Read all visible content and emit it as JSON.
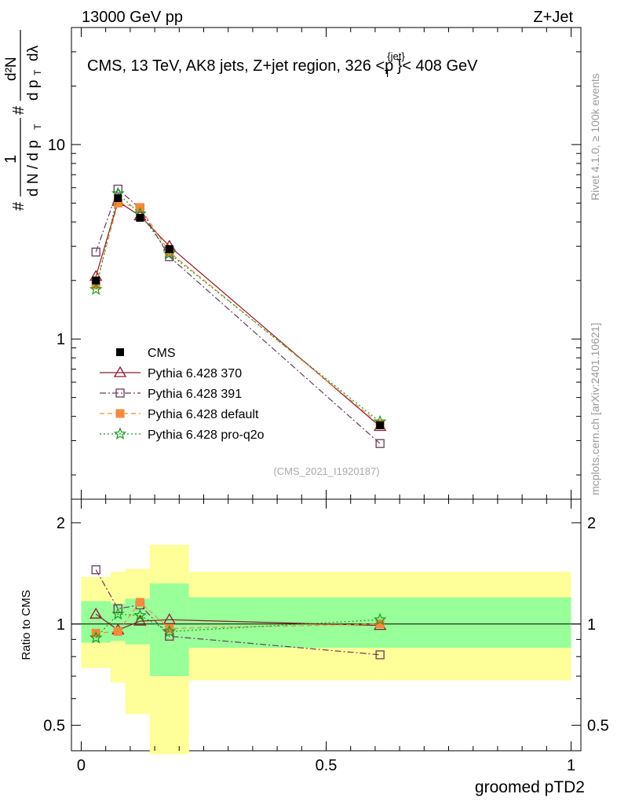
{
  "header": {
    "left": "13000 GeV pp",
    "right": "Z+Jet"
  },
  "side": {
    "rivet": "Rivet 4.1.0, ≥ 100k events",
    "mcplots": "mcplots.cern.ch [arXiv:2401.10621]"
  },
  "chart_data": {
    "type": "line",
    "title": "CMS, 13 TeV, AK8 jets, Z+jet region, 326 <p_T^{jet}< 408 GeV",
    "title_parts": {
      "main": "CMS, 13 TeV, AK8 jets, Z+jet region, 326 <p",
      "sup": "{jet}",
      "sub": "T",
      "tail": "}< 408 GeV"
    },
    "ylabel_main": "1/N dN/dp_T d²N/dp_T dλ",
    "ylabel_parts": {
      "hash": "#",
      "one": "1",
      "dn": "d N / d p",
      "t": "T",
      "d2n": "d²N",
      "dpt": "d p",
      "dl": "dλ"
    },
    "ylabel_ratio": "Ratio to CMS",
    "xlabel": "groomed pTD2",
    "watermark": "(CMS_2021_I1920187)",
    "x_ticks": [
      "0",
      "0.5",
      "1"
    ],
    "y_ticks_main": [
      "1",
      "10"
    ],
    "y_ticks_ratio": [
      "0.5",
      "1",
      "2"
    ],
    "xlim": [
      -0.02,
      1.02
    ],
    "ylim_main": [
      0.15,
      40
    ],
    "ylim_ratio": [
      0.42,
      2.35
    ],
    "x": [
      0.03,
      0.075,
      0.12,
      0.18,
      0.61
    ],
    "bins": [
      [
        0,
        0.06
      ],
      [
        0.06,
        0.09
      ],
      [
        0.09,
        0.14
      ],
      [
        0.14,
        0.22
      ],
      [
        0.22,
        1.0
      ]
    ],
    "data": {
      "name": "CMS",
      "values": [
        2.0,
        5.3,
        4.2,
        2.9,
        0.36
      ]
    },
    "series": [
      {
        "name": "Pythia 6.428 370",
        "color": "#8b1a2b",
        "values": [
          2.1,
          5.1,
          4.3,
          3.0,
          0.355
        ],
        "ratio": [
          1.07,
          0.96,
          1.02,
          1.03,
          0.99
        ]
      },
      {
        "name": "Pythia 6.428 391",
        "color": "#6b3a5e",
        "values": [
          2.8,
          5.9,
          4.7,
          2.65,
          0.29
        ],
        "ratio": [
          1.45,
          1.11,
          1.14,
          0.92,
          0.81
        ]
      },
      {
        "name": "Pythia 6.428 default",
        "color": "#f48a3c",
        "values": [
          1.9,
          5.0,
          4.75,
          2.8,
          0.365
        ],
        "ratio": [
          0.94,
          0.95,
          1.16,
          0.97,
          1.0
        ]
      },
      {
        "name": "Pythia 6.428 pro-q2o",
        "color": "#1a9a1a",
        "values": [
          1.8,
          5.6,
          4.4,
          2.75,
          0.375
        ],
        "ratio": [
          0.91,
          1.07,
          1.06,
          0.95,
          1.03
        ]
      }
    ],
    "bands_inner": [
      [
        0.88,
        1.17
      ],
      [
        0.89,
        1.15
      ],
      [
        0.87,
        1.19
      ],
      [
        0.7,
        1.32
      ],
      [
        0.85,
        1.2
      ]
    ],
    "bands_outer": [
      [
        0.74,
        1.38
      ],
      [
        0.67,
        1.43
      ],
      [
        0.54,
        1.46
      ],
      [
        0.41,
        1.72
      ],
      [
        0.68,
        1.43
      ]
    ]
  }
}
